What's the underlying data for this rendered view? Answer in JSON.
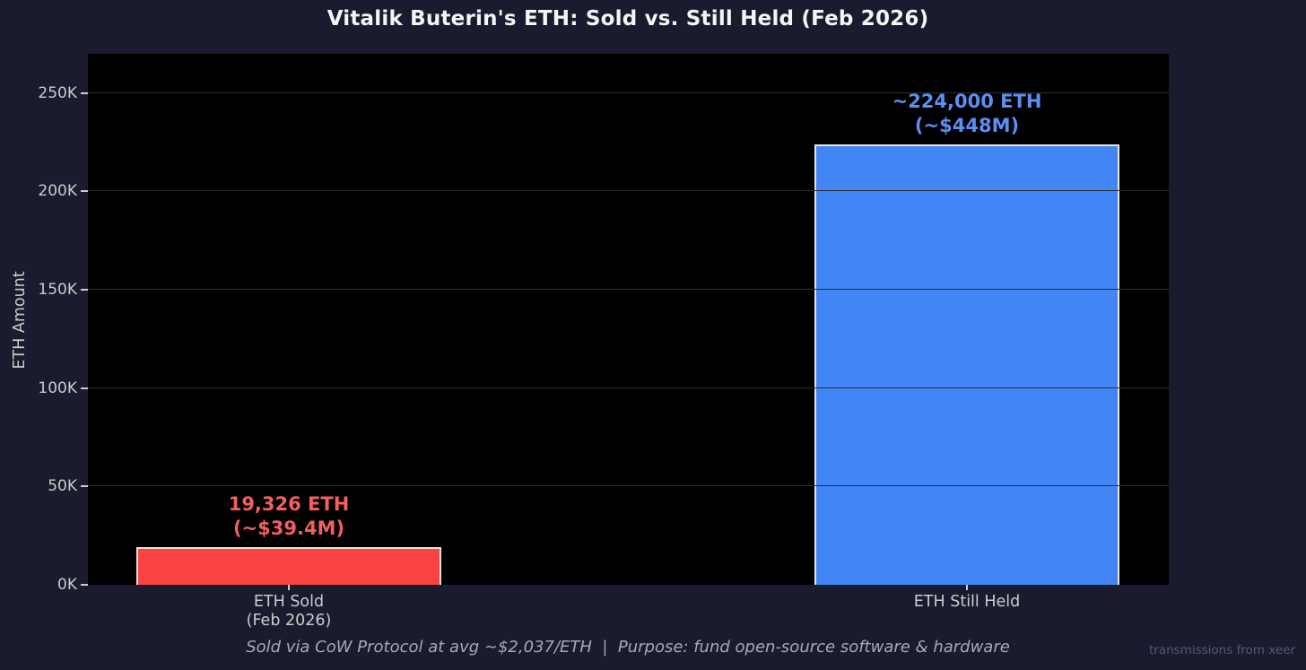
{
  "title": "Vitalik Buterin's ETH: Sold vs. Still Held (Feb 2026)",
  "y_axis": {
    "label": "ETH Amount",
    "ticks": [
      {
        "label": "0K",
        "value": 0
      },
      {
        "label": "50K",
        "value": 50000
      },
      {
        "label": "100K",
        "value": 100000
      },
      {
        "label": "150K",
        "value": 150000
      },
      {
        "label": "200K",
        "value": 200000
      },
      {
        "label": "250K",
        "value": 250000
      }
    ]
  },
  "chart_data": {
    "type": "bar",
    "title": "Vitalik Buterin's ETH: Sold vs. Still Held (Feb 2026)",
    "xlabel": "",
    "ylabel": "ETH Amount",
    "ylim": [
      0,
      270000
    ],
    "grid": "horizontal",
    "legend": "none",
    "plot_background": "#000000",
    "categories": [
      "ETH Sold (Feb 2026)",
      "ETH Still Held"
    ],
    "values": [
      19326,
      224000
    ],
    "bars": [
      {
        "category_line1": "ETH Sold",
        "category_line2": "(Feb 2026)",
        "value": 19326,
        "label_line1": "19,326 ETH",
        "label_line2": "(~$39.4M)",
        "fill": "#fc4343",
        "label_color": "#f25f5f"
      },
      {
        "category_line1": "ETH Still Held",
        "category_line2": "",
        "value": 224000,
        "label_line1": "~224,000 ETH",
        "label_line2": "(~$448M)",
        "fill": "#4286f5",
        "label_color": "#5b8ff2"
      }
    ]
  },
  "footer": {
    "caption": "Sold via CoW Protocol at avg ~$2,037/ETH  |  Purpose: fund open-source software & hardware",
    "watermark": "transmissions from xeer"
  },
  "colors": {
    "background": "#1a1b2e",
    "plot_background": "#000000",
    "title_text": "#f5f5f5",
    "tick_text": "#cccccc",
    "gridline": "#2e2e2e",
    "bar_border": "#e9e5da",
    "sold_bar": "#fc4343",
    "sold_label": "#f25f5f",
    "held_bar": "#4286f5",
    "held_label": "#5b8ff2",
    "footer_text": "#a9a9b2",
    "watermark_text": "#555a72"
  }
}
